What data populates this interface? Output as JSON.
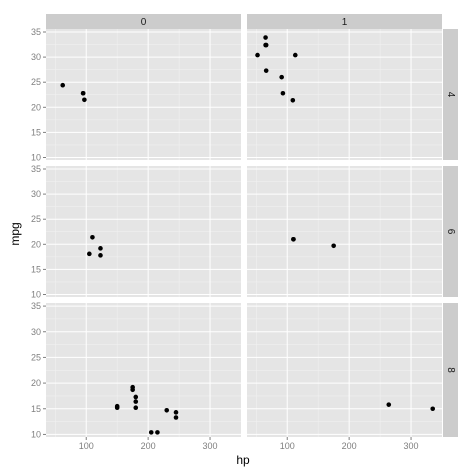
{
  "chart_data": {
    "type": "scatter",
    "xlabel": "hp",
    "ylabel": "mpg",
    "xlim": [
      35,
      350
    ],
    "ylim": [
      9.5,
      35.6
    ],
    "x_ticks": [
      100,
      200,
      300
    ],
    "y_ticks": [
      10,
      15,
      20,
      25,
      30,
      35
    ],
    "col_facets": [
      "0",
      "1"
    ],
    "row_facets": [
      "4",
      "6",
      "8"
    ],
    "panels": [
      {
        "row": "4",
        "col": "0",
        "points": [
          [
            62,
            24.4
          ],
          [
            95,
            22.8
          ],
          [
            97,
            21.5
          ],
          [
            95,
            22.8
          ]
        ]
      },
      {
        "row": "4",
        "col": "1",
        "points": [
          [
            52,
            30.4
          ],
          [
            65,
            33.9
          ],
          [
            65,
            32.4
          ],
          [
            66,
            27.3
          ],
          [
            91,
            26.0
          ],
          [
            93,
            22.8
          ],
          [
            113,
            30.4
          ],
          [
            109,
            21.4
          ],
          [
            66,
            32.4
          ]
        ]
      },
      {
        "row": "6",
        "col": "0",
        "points": [
          [
            110,
            21.4
          ],
          [
            105,
            18.1
          ],
          [
            123,
            19.2
          ],
          [
            123,
            17.8
          ]
        ]
      },
      {
        "row": "6",
        "col": "1",
        "points": [
          [
            110,
            21.0
          ],
          [
            110,
            21.0
          ],
          [
            175,
            19.7
          ]
        ]
      },
      {
        "row": "8",
        "col": "0",
        "points": [
          [
            175,
            18.7
          ],
          [
            245,
            14.3
          ],
          [
            180,
            16.4
          ],
          [
            180,
            17.3
          ],
          [
            180,
            15.2
          ],
          [
            205,
            10.4
          ],
          [
            215,
            10.4
          ],
          [
            230,
            14.7
          ],
          [
            150,
            15.5
          ],
          [
            150,
            15.2
          ],
          [
            245,
            13.3
          ],
          [
            175,
            19.2
          ]
        ]
      },
      {
        "row": "8",
        "col": "1",
        "points": [
          [
            264,
            15.8
          ],
          [
            335,
            15.0
          ]
        ]
      }
    ],
    "colors": {
      "panel_bg": "#e5e5e5",
      "strip_bg": "#cccccc",
      "grid_major": "#ffffff",
      "grid_minor": "#f2f2f2",
      "point": "#000000"
    }
  }
}
